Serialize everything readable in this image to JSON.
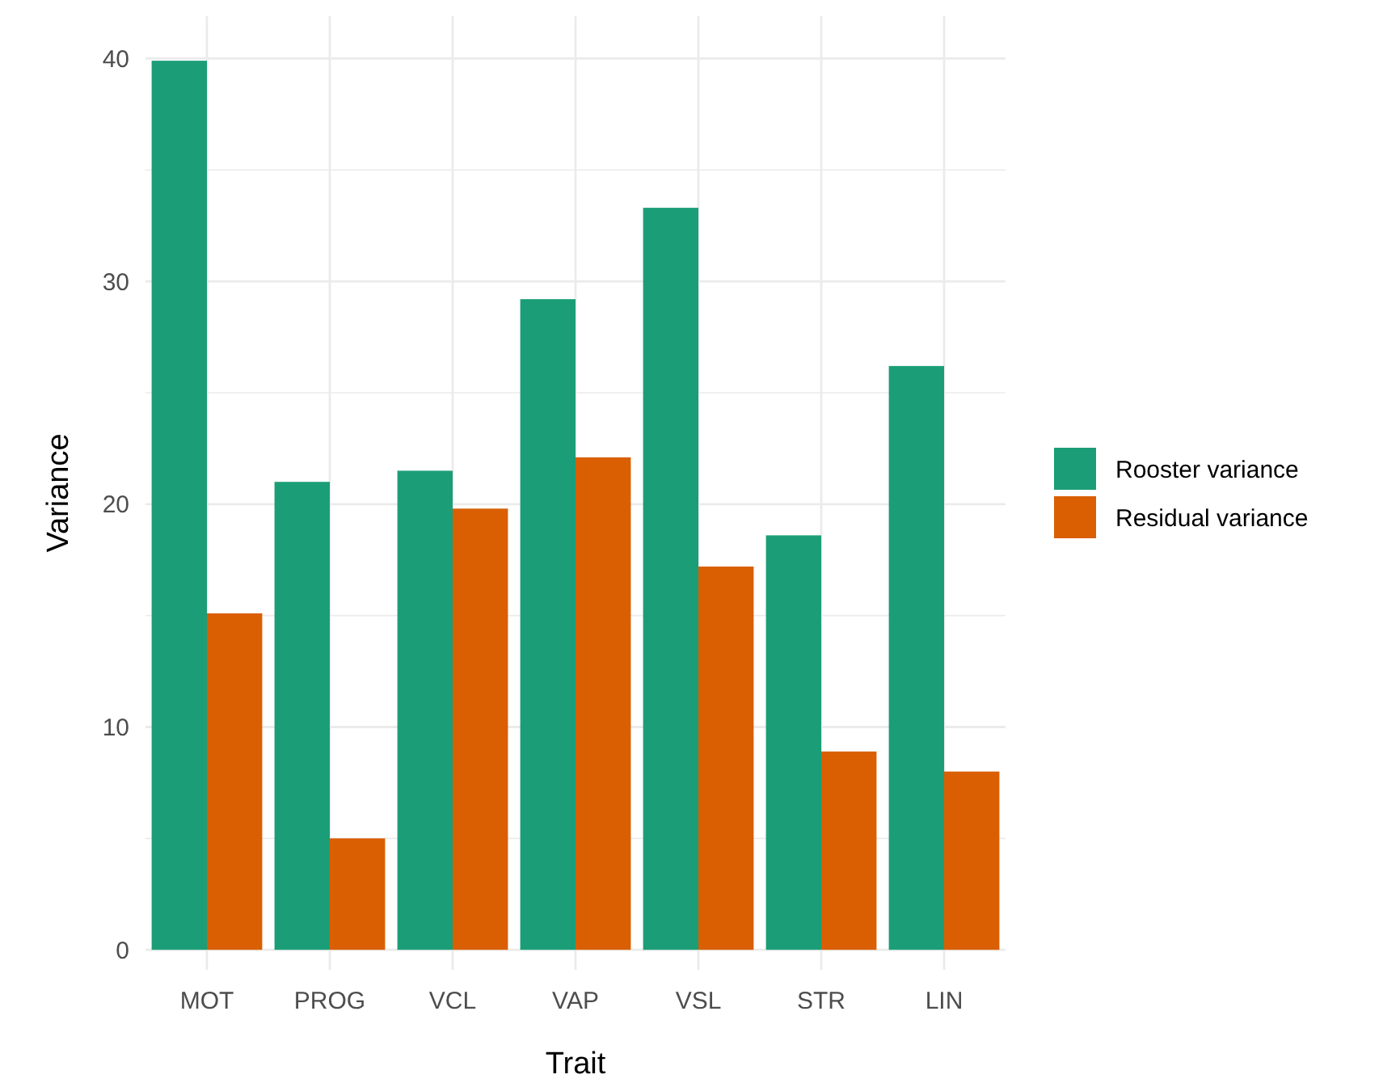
{
  "chart_data": {
    "type": "bar",
    "xlabel": "Trait",
    "ylabel": "Variance",
    "categories": [
      "MOT",
      "PROG",
      "VCL",
      "VAP",
      "VSL",
      "STR",
      "LIN"
    ],
    "series": [
      {
        "name": "Rooster variance",
        "color": "#1b9e77",
        "values": [
          39.9,
          21.0,
          21.5,
          29.2,
          33.3,
          18.6,
          26.2
        ]
      },
      {
        "name": "Residual variance",
        "color": "#d95f02",
        "values": [
          15.1,
          5.0,
          19.8,
          22.1,
          17.2,
          8.9,
          8.0
        ]
      }
    ],
    "ylim": [
      -0.9,
      41.9
    ],
    "yticks": [
      0,
      {
        "value": 5,
        "label": null
      },
      10,
      {
        "value": 15,
        "label": null
      },
      20,
      {
        "value": 25,
        "label": null
      },
      30,
      {
        "value": 35,
        "label": null
      },
      40
    ],
    "grid": true,
    "legend": "right"
  }
}
